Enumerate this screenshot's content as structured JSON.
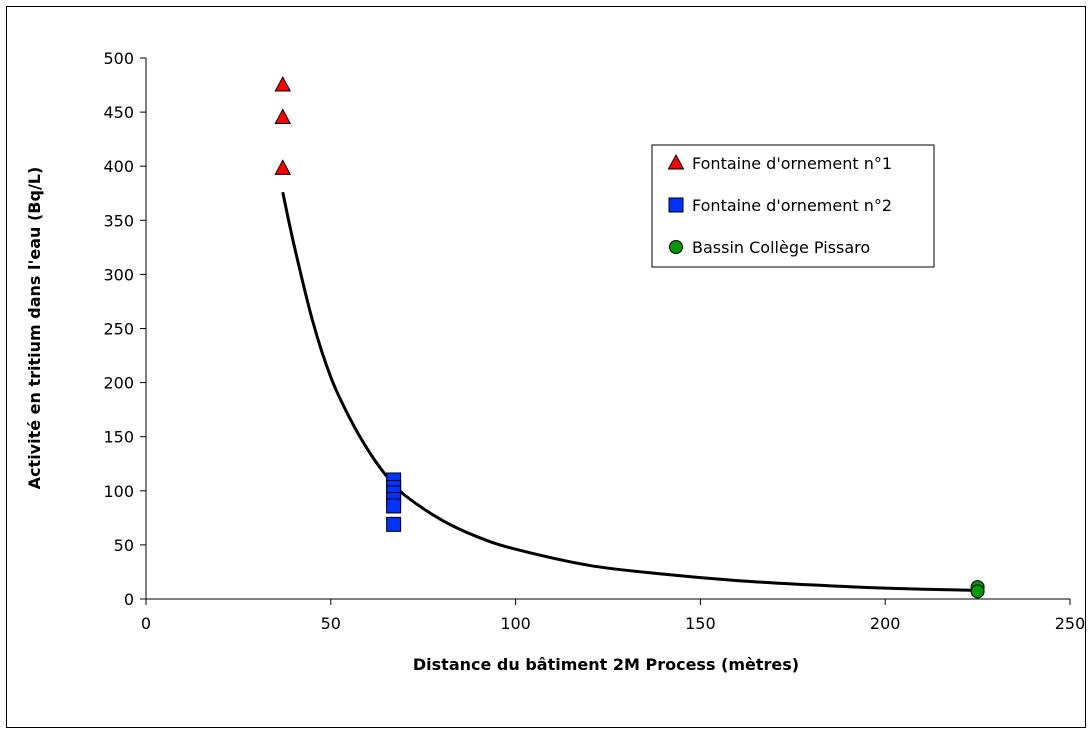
{
  "chart_data": {
    "type": "scatter",
    "xlabel": "Distance du bâtiment 2M Process (mètres)",
    "ylabel": "Activité en tritium dans l'eau (Bq/L)",
    "xlim": [
      0,
      250
    ],
    "ylim": [
      0,
      500
    ],
    "x_ticks": [
      0,
      50,
      100,
      150,
      200,
      250
    ],
    "y_ticks": [
      0,
      50,
      100,
      150,
      200,
      250,
      300,
      350,
      400,
      450,
      500
    ],
    "grid": false,
    "legend_position": "top-right",
    "series": [
      {
        "name": "Fontaine d'ornement n°1",
        "marker": "triangle",
        "color": "#ff0000",
        "points": [
          [
            37,
            475
          ],
          [
            37,
            445
          ],
          [
            37,
            398
          ]
        ]
      },
      {
        "name": "Fontaine d'ornement n°2",
        "marker": "square",
        "color": "#0033ff",
        "points": [
          [
            67,
            110
          ],
          [
            67,
            103
          ],
          [
            67,
            98
          ],
          [
            67,
            92
          ],
          [
            67,
            86
          ],
          [
            67,
            69
          ]
        ]
      },
      {
        "name": "Bassin Collège Pissaro",
        "marker": "circle",
        "color": "#009900",
        "points": [
          [
            225,
            11
          ],
          [
            225,
            7
          ]
        ]
      }
    ],
    "trend_line": {
      "color": "#000000",
      "x_range": [
        37,
        225
      ],
      "points": [
        [
          37,
          376
        ],
        [
          40,
          328
        ],
        [
          45,
          258
        ],
        [
          50,
          205
        ],
        [
          55,
          168
        ],
        [
          60,
          138
        ],
        [
          65,
          114
        ],
        [
          70,
          96
        ],
        [
          80,
          73
        ],
        [
          90,
          57
        ],
        [
          100,
          46
        ],
        [
          120,
          31
        ],
        [
          140,
          23
        ],
        [
          160,
          17
        ],
        [
          180,
          13
        ],
        [
          200,
          10
        ],
        [
          225,
          8
        ]
      ]
    }
  }
}
